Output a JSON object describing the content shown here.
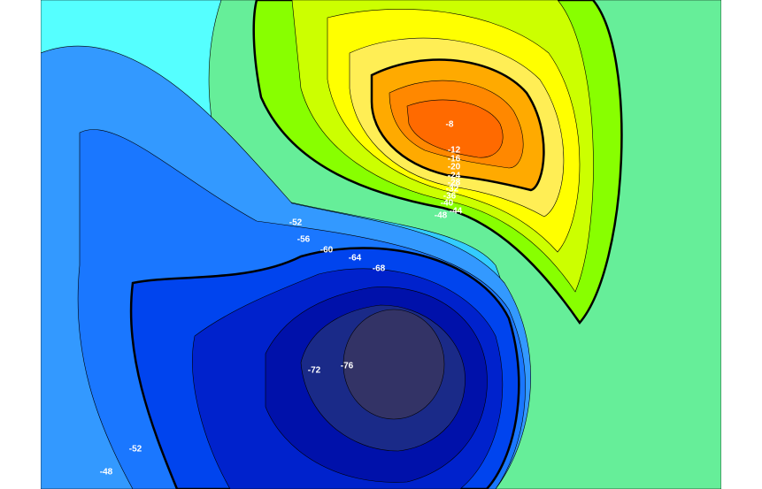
{
  "contour_labels": [
    "-8",
    "-12",
    "-16",
    "-20",
    "-24",
    "-28",
    "-32",
    "-36",
    "-40",
    "-44",
    "-48",
    "-52",
    "-56",
    "-60",
    "-64",
    "-68",
    "-72",
    "-76",
    "-52",
    "-48"
  ]
}
